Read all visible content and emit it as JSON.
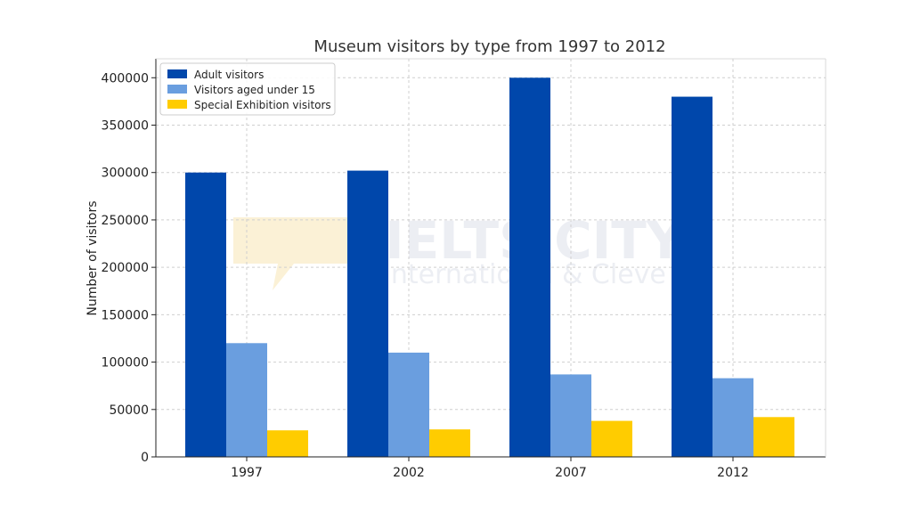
{
  "chart_data": {
    "type": "bar",
    "title": "Museum visitors by type from 1997 to 2012",
    "xlabel": "",
    "ylabel": "Number of visitors",
    "categories": [
      "1997",
      "2002",
      "2007",
      "2012"
    ],
    "series": [
      {
        "name": "Adult visitors",
        "values": [
          300000,
          302000,
          400000,
          380000
        ],
        "color": "#0047ab"
      },
      {
        "name": "Visitors aged under 15",
        "values": [
          120000,
          110000,
          87000,
          83000
        ],
        "color": "#6a9edf"
      },
      {
        "name": "Special Exhibition visitors",
        "values": [
          28000,
          29000,
          38000,
          42000
        ],
        "color": "#ffcc00"
      }
    ],
    "ylim": [
      0,
      420000
    ],
    "yticks": [
      "0",
      "50000",
      "100000",
      "150000",
      "200000",
      "250000",
      "300000",
      "350000",
      "400000"
    ],
    "grid": true,
    "legend_position": "top-left"
  },
  "watermark": {
    "title": "IELTS CITY",
    "subtitle": "International & Cleve"
  }
}
